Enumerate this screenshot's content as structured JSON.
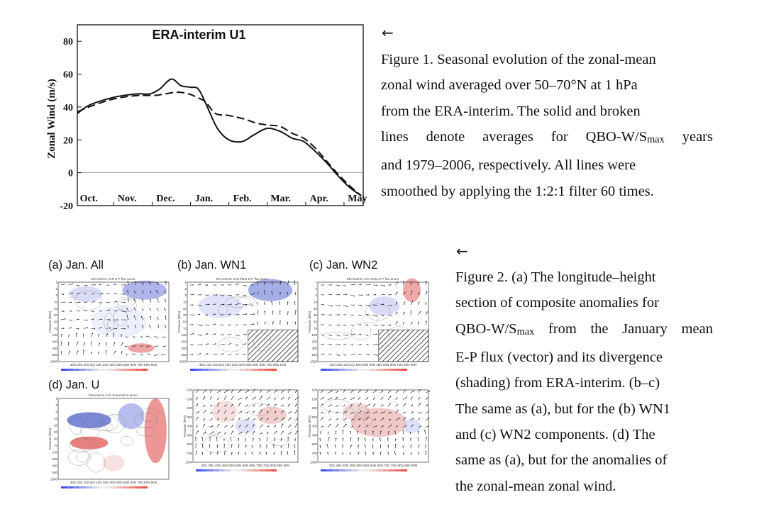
{
  "figure1": {
    "chart_data": {
      "type": "line",
      "title": "ERA-interim U1",
      "ylabel": "Zonal Wind (m/s)",
      "xlabel": "",
      "ylim": [
        -20,
        90
      ],
      "yticks": [
        80,
        60,
        40,
        20,
        0,
        -20
      ],
      "month_labels": [
        "Oct.",
        "Nov.",
        "Dec.",
        "Jan.",
        "Feb.",
        "Mar.",
        "Apr.",
        "May"
      ],
      "grid": false,
      "series": [
        {
          "style": "solid",
          "x": [
            0,
            0.3,
            0.8,
            1.2,
            1.6,
            1.9,
            2.15,
            2.45,
            2.7,
            2.95,
            3.15,
            3.35,
            3.65,
            3.95,
            4.3,
            4.6,
            4.95,
            5.3,
            5.6,
            5.9,
            6.2,
            6.5,
            6.8,
            7.1,
            7.4
          ],
          "y": [
            36,
            41,
            45,
            47,
            48,
            48,
            51,
            57,
            53,
            52,
            51,
            42,
            27,
            20,
            19,
            23,
            27,
            25,
            21,
            19,
            13,
            6,
            -2,
            -9,
            -14
          ]
        },
        {
          "style": "dashed",
          "x": [
            0,
            0.3,
            0.8,
            1.2,
            1.6,
            2.0,
            2.3,
            2.6,
            2.9,
            3.2,
            3.35,
            3.6,
            3.9,
            4.3,
            4.7,
            5.0,
            5.3,
            5.6,
            5.9,
            6.2,
            6.5,
            6.8,
            7.1,
            7.4
          ],
          "y": [
            37,
            40,
            44,
            46,
            47,
            47,
            48,
            49,
            48,
            45,
            43,
            36,
            35,
            33,
            30,
            29,
            28,
            24,
            21,
            15,
            7,
            -1,
            -8,
            -14
          ]
        }
      ]
    },
    "arrow": "←",
    "caption_lines": [
      "Figure 1. Seasonal evolution of the zonal-mean",
      "zonal wind averaged over 50–70°N at 1 hPa",
      "from the ERA-interim. The solid and broken",
      "lines denote averages for QBO-W/S",
      "and 1979–2006, respectively. All lines were",
      "smoothed by applying the 1:2:1 filter 60 times."
    ],
    "caption_sub": "max",
    "caption_line4_tail": " years"
  },
  "figure2": {
    "arrow": "←",
    "panels": [
      {
        "label": "(a) Jan. All",
        "subtitle": "ERAinterim JAN E-P flux anom."
      },
      {
        "label": "(b) Jan. WN1",
        "subtitle": "ERAinterim JAN WN1 E-P flux anom."
      },
      {
        "label": "(c) Jan. WN2",
        "subtitle": "ERAinterim JAN WN2 E-P flux anom."
      },
      {
        "label": "(d) Jan. U",
        "subtitle": "ERAinterim JAN Zonal Wind anom."
      }
    ],
    "pressure_axis": "Pressure (hPa)",
    "pressure_ticks": [
      "1",
      "2",
      "5",
      "10",
      "20",
      "30",
      "50",
      "70",
      "100",
      "200",
      "300",
      "500",
      "1000"
    ],
    "lower_pressure_ticks": [
      "100",
      "150",
      "200",
      "250",
      "300",
      "400",
      "500",
      "700",
      "1000"
    ],
    "lat_ticks_a": "30S 20S 10S EQ 10N 20N 30N 40N 50N 60N 70N 80N 90N",
    "lat_ticks_lower": "30S 35N 40N 45N 50N 55N 60N 65N 70N 75N 80N 85N 90N",
    "caption_lines": [
      "Figure 2. (a) The longitude–height",
      "section of composite anomalies for",
      "QBO-W/S",
      "E-P flux (vector) and its divergence",
      "(shading) from ERA-interim. (b–c)",
      "The same as (a), but for the (b) WN1",
      "and (c) WN2 components. (d) The",
      "same as (a), but for the anomalies of",
      "the zonal-mean zonal wind."
    ],
    "caption_sub": "max",
    "caption_line3_tail": " from the January mean"
  }
}
